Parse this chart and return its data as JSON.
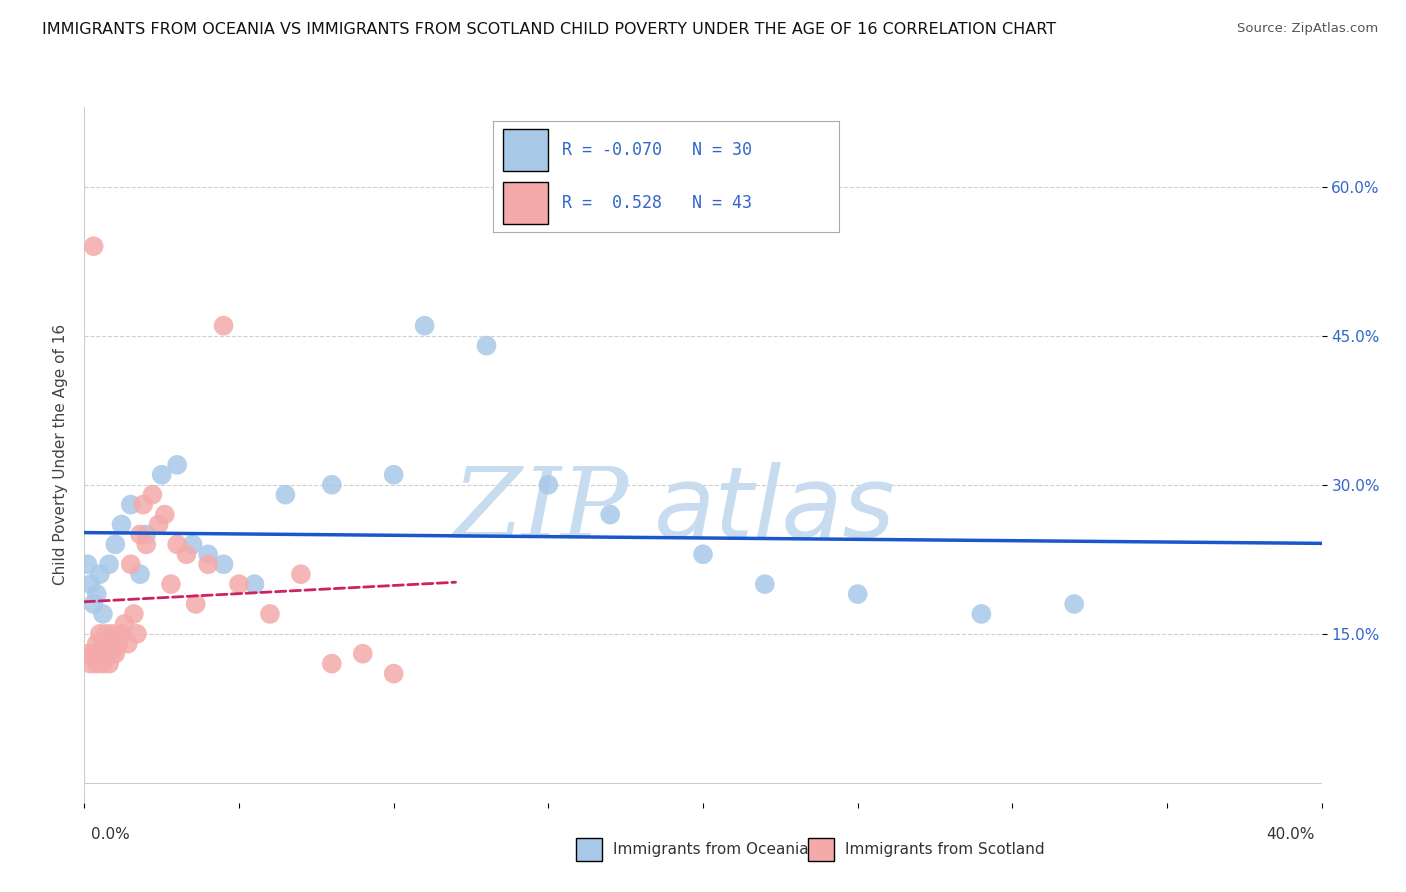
{
  "title": "IMMIGRANTS FROM OCEANIA VS IMMIGRANTS FROM SCOTLAND CHILD POVERTY UNDER THE AGE OF 16 CORRELATION CHART",
  "source": "Source: ZipAtlas.com",
  "ylabel": "Child Poverty Under the Age of 16",
  "x_range": [
    0.0,
    0.4
  ],
  "y_range": [
    -0.02,
    0.68
  ],
  "legend_blue_label": "Immigrants from Oceania",
  "legend_pink_label": "Immigrants from Scotland",
  "R_blue": -0.07,
  "N_blue": 30,
  "R_pink": 0.528,
  "N_pink": 43,
  "watermark_zip": "ZIP",
  "watermark_atlas": "atlas",
  "oceania_x": [
    0.001,
    0.002,
    0.003,
    0.004,
    0.005,
    0.006,
    0.008,
    0.01,
    0.012,
    0.015,
    0.018,
    0.02,
    0.025,
    0.03,
    0.035,
    0.04,
    0.045,
    0.055,
    0.065,
    0.08,
    0.1,
    0.11,
    0.13,
    0.15,
    0.17,
    0.2,
    0.22,
    0.25,
    0.29,
    0.32
  ],
  "oceania_y": [
    0.22,
    0.2,
    0.18,
    0.19,
    0.21,
    0.17,
    0.22,
    0.24,
    0.26,
    0.28,
    0.21,
    0.25,
    0.31,
    0.32,
    0.24,
    0.23,
    0.22,
    0.2,
    0.29,
    0.3,
    0.31,
    0.46,
    0.44,
    0.3,
    0.27,
    0.23,
    0.2,
    0.19,
    0.17,
    0.18
  ],
  "scotland_x": [
    0.001,
    0.002,
    0.003,
    0.003,
    0.004,
    0.004,
    0.005,
    0.005,
    0.006,
    0.006,
    0.007,
    0.007,
    0.008,
    0.008,
    0.009,
    0.009,
    0.01,
    0.01,
    0.011,
    0.012,
    0.013,
    0.014,
    0.015,
    0.016,
    0.017,
    0.018,
    0.019,
    0.02,
    0.022,
    0.024,
    0.026,
    0.028,
    0.03,
    0.033,
    0.036,
    0.04,
    0.045,
    0.05,
    0.06,
    0.07,
    0.08,
    0.09,
    0.1
  ],
  "scotland_y": [
    0.13,
    0.12,
    0.54,
    0.13,
    0.12,
    0.14,
    0.13,
    0.15,
    0.14,
    0.12,
    0.13,
    0.15,
    0.14,
    0.12,
    0.13,
    0.15,
    0.14,
    0.13,
    0.14,
    0.15,
    0.16,
    0.14,
    0.22,
    0.17,
    0.15,
    0.25,
    0.28,
    0.24,
    0.29,
    0.26,
    0.27,
    0.2,
    0.24,
    0.23,
    0.18,
    0.22,
    0.46,
    0.2,
    0.17,
    0.21,
    0.12,
    0.13,
    0.11
  ],
  "title_fontsize": 11.5,
  "source_fontsize": 9.5,
  "axis_label_fontsize": 11,
  "tick_fontsize": 11,
  "legend_fontsize": 12,
  "background_color": "#ffffff",
  "plot_bg_color": "#ffffff",
  "blue_color": "#A8C8E8",
  "pink_color": "#F4AAAA",
  "blue_line_color": "#1A56CC",
  "pink_line_color": "#CC2266",
  "grid_color": "#BBBBBB",
  "watermark_zip_color": "#C8DCF0",
  "watermark_atlas_color": "#C8DCF0",
  "tick_color": "#3366CC",
  "ylabel_color": "#444444"
}
